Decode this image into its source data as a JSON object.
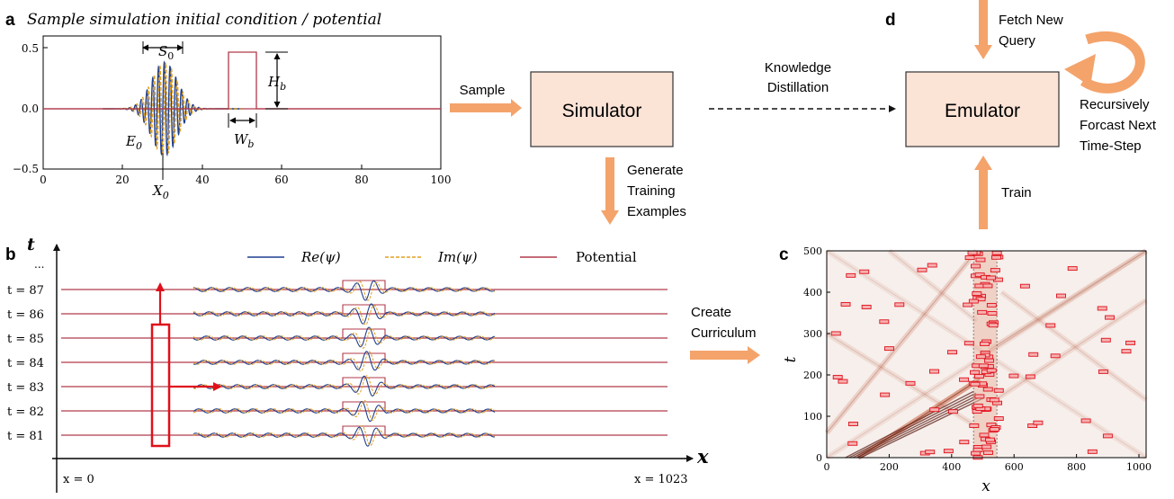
{
  "colors": {
    "re": "#1f3f8f",
    "im": "#e0a020",
    "potential": "#b03a4a",
    "arrow_fill": "#f4a36b",
    "box_fill": "#fbe3d6",
    "box_stroke": "#333333",
    "marker": "#e0101a"
  },
  "panel_a": {
    "letter": "a",
    "title": "Sample simulation initial condition / potential",
    "y_ticks": [
      "0.5",
      "0.0",
      "−0.5"
    ],
    "x_ticks": [
      "0",
      "20",
      "40",
      "60",
      "80",
      "100"
    ],
    "label_s0": "S",
    "label_s0_sub": "0",
    "label_hb": "H",
    "label_hb_sub": "b",
    "label_wb": "W",
    "label_wb_sub": "b",
    "label_e0": "E",
    "label_e0_sub": "0",
    "label_x0": "X",
    "label_x0_sub": "0"
  },
  "flow": {
    "sample_label": "Sample",
    "simulator_label": "Simulator",
    "distill_line1": "Knowledge",
    "distill_line2": "Distillation",
    "emulator_label": "Emulator",
    "generate_line1": "Generate",
    "generate_line2": "Training",
    "generate_line3": "Examples",
    "curriculum_line1": "Create",
    "curriculum_line2": "Curriculum",
    "train_label": "Train"
  },
  "panel_d": {
    "letter": "d",
    "fetch_line1": "Fetch New",
    "fetch_line2": "Query",
    "recursive_line1": "Recursively",
    "recursive_line2": "Forcast Next",
    "recursive_line3": "Time-Step"
  },
  "panel_b": {
    "letter": "b",
    "axis_t": "t",
    "axis_x": "x",
    "ellipsis": "...",
    "rows": [
      "t = 87",
      "t = 86",
      "t = 85",
      "t = 84",
      "t = 83",
      "t = 82",
      "t = 81"
    ],
    "x_start": "x = 0",
    "x_end": "x = 1023",
    "legend": {
      "re": "Re(ψ)",
      "im": "Im(ψ)",
      "potential": "Potential"
    }
  },
  "panel_c": {
    "letter": "c",
    "xlabel": "x",
    "ylabel": "t",
    "x_ticks": [
      "0",
      "200",
      "400",
      "600",
      "800",
      "1000"
    ],
    "y_ticks": [
      "0",
      "100",
      "200",
      "300",
      "400",
      "500"
    ]
  }
}
